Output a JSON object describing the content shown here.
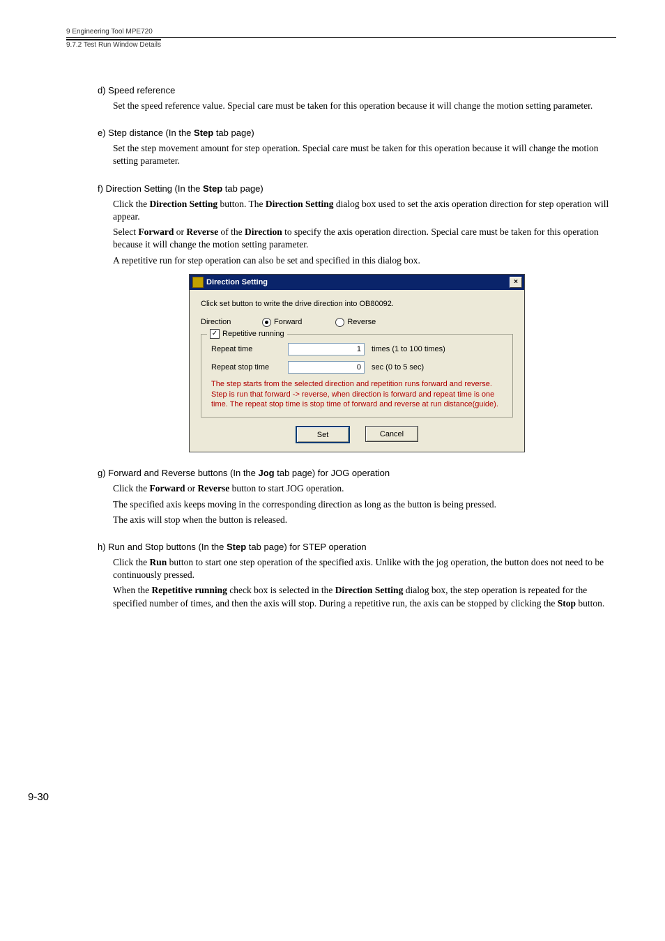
{
  "header": {
    "chapter": "9  Engineering Tool MPE720",
    "subsection": "9.7.2  Test Run Window Details"
  },
  "sections": {
    "d": {
      "heading": "d) Speed reference",
      "body": "Set the speed reference value. Special care must be taken for this operation because it will change the motion setting parameter."
    },
    "e": {
      "heading_pre": "e) Step distance (In the ",
      "heading_bold": "Step",
      "heading_post": " tab page)",
      "body": "Set the step movement amount for step operation. Special care must be taken for this operation because it will change the motion setting parameter."
    },
    "f": {
      "heading_pre": "f) Direction Setting (In the ",
      "heading_bold": "Step",
      "heading_post": " tab page)",
      "p1_a": "Click the ",
      "p1_b": "Direction Setting",
      "p1_c": " button. The ",
      "p1_d": "Direction Setting",
      "p1_e": " dialog box used to set the axis operation direction for step operation will appear.",
      "p2_a": "Select ",
      "p2_b": "Forward",
      "p2_c": " or ",
      "p2_d": "Reverse",
      "p2_e": " of the ",
      "p2_f": "Direction",
      "p2_g": " to specify the axis operation direction. Special care must be taken for this operation because it will change the motion setting parameter.",
      "p3": "A repetitive run for step operation can also be set and specified in this dialog box."
    },
    "dialog": {
      "title": "Direction Setting",
      "close": "×",
      "instruction": "Click set button to write the drive direction into OB80092.",
      "direction_label": "Direction",
      "forward": "Forward",
      "reverse": "Reverse",
      "group_legend": "Repetitive running",
      "check_mark": "✓",
      "repeat_time_label": "Repeat time",
      "repeat_time_value": "1",
      "repeat_time_hint": "times (1 to 100 times)",
      "repeat_stop_label": "Repeat stop time",
      "repeat_stop_value": "0",
      "repeat_stop_hint": "sec (0 to 5 sec)",
      "red1": "The step starts from the selected direction and repetition runs forward and reverse.",
      "red2": "Step is run that forward -> reverse, when direction is forward and repeat time is one time. The repeat stop time is stop time of forward and reverse at run distance(guide).",
      "set_btn": "Set",
      "cancel_btn": "Cancel"
    },
    "g": {
      "heading_pre": "g) Forward and Reverse buttons (In the ",
      "heading_bold": "Jog",
      "heading_post": " tab page) for JOG operation",
      "p1_a": "Click the ",
      "p1_b": "Forward",
      "p1_c": " or ",
      "p1_d": "Reverse",
      "p1_e": " button to start JOG operation.",
      "p2": "The specified axis keeps moving in the corresponding direction as long as the button is being pressed.",
      "p3": "The axis will stop when the button is released."
    },
    "h": {
      "heading_pre": "h) Run and Stop buttons (In the ",
      "heading_bold": "Step",
      "heading_post": " tab page) for STEP operation",
      "p1_a": "Click the ",
      "p1_b": "Run",
      "p1_c": " button to start one step operation of the specified axis. Unlike with the jog operation, the button does not need to be continuously pressed.",
      "p2_a": "When the ",
      "p2_b": "Repetitive running",
      "p2_c": " check box is selected in the ",
      "p2_d": "Direction Setting",
      "p2_e": " dialog box, the step operation is repeated for the specified number of times, and then the axis will stop. During a repetitive run, the axis can be stopped by clicking the ",
      "p2_f": "Stop",
      "p2_g": " button."
    }
  },
  "page_number": "9-30"
}
